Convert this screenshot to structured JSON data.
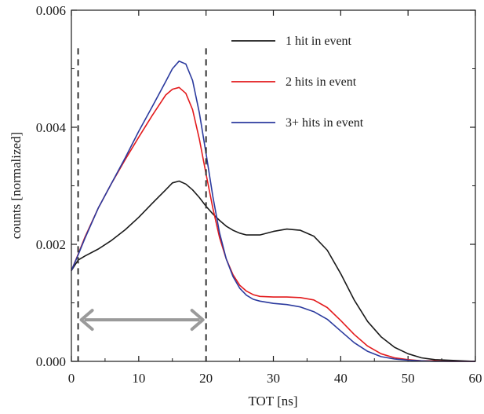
{
  "chart_data": {
    "type": "line",
    "xlabel": "TOT [ns]",
    "ylabel": "counts [normalized]",
    "xlim": [
      0,
      60
    ],
    "ylim": [
      0,
      0.006
    ],
    "x_ticks": [
      0,
      10,
      20,
      30,
      40,
      50,
      60
    ],
    "x_tick_labels": [
      "0",
      "10",
      "20",
      "30",
      "40",
      "50",
      "60"
    ],
    "y_ticks": [
      0,
      0.002,
      0.004,
      0.006
    ],
    "y_tick_labels": [
      "0.000",
      "0.002",
      "0.004",
      "0.006"
    ],
    "grid": false,
    "legend_position": "top-right",
    "series": [
      {
        "name": "1 hit in event",
        "color": "#1a1a1a",
        "x": [
          0,
          1,
          2,
          4,
          6,
          8,
          10,
          12,
          14,
          15,
          16,
          17,
          18,
          19,
          20,
          21,
          22,
          23,
          24,
          25,
          26,
          28,
          30,
          32,
          34,
          36,
          38,
          40,
          42,
          44,
          46,
          48,
          50,
          52,
          54,
          56,
          58,
          60
        ],
        "y": [
          0.00155,
          0.00173,
          0.0018,
          0.00192,
          0.00207,
          0.00225,
          0.00246,
          0.0027,
          0.00293,
          0.00305,
          0.00308,
          0.00303,
          0.00293,
          0.0028,
          0.00265,
          0.00252,
          0.00241,
          0.00231,
          0.00224,
          0.00219,
          0.00216,
          0.00216,
          0.00222,
          0.00226,
          0.00224,
          0.00214,
          0.0019,
          0.0015,
          0.00105,
          0.00068,
          0.00042,
          0.00024,
          0.00013,
          6e-05,
          3e-05,
          2e-05,
          1e-05,
          0.0
        ]
      },
      {
        "name": "2 hits in event",
        "color": "#e31a1c",
        "x": [
          0,
          1,
          2,
          4,
          6,
          8,
          10,
          12,
          14,
          15,
          16,
          17,
          18,
          19,
          20,
          21,
          22,
          23,
          24,
          25,
          26,
          27,
          28,
          30,
          32,
          34,
          36,
          38,
          40,
          42,
          44,
          46,
          48,
          50,
          52,
          54,
          56,
          58,
          60
        ],
        "y": [
          0.00155,
          0.00183,
          0.00212,
          0.00262,
          0.00305,
          0.00345,
          0.00383,
          0.0042,
          0.00455,
          0.00465,
          0.00468,
          0.00458,
          0.0043,
          0.0038,
          0.0032,
          0.00262,
          0.00212,
          0.00175,
          0.00148,
          0.0013,
          0.0012,
          0.00114,
          0.00111,
          0.0011,
          0.0011,
          0.00109,
          0.00105,
          0.00092,
          0.0007,
          0.00046,
          0.00026,
          0.00013,
          6e-05,
          3e-05,
          1e-05,
          1e-05,
          0.0,
          0.0,
          0.0
        ]
      },
      {
        "name": "3+ hits in event",
        "color": "#2b3a9e",
        "x": [
          0,
          1,
          2,
          4,
          6,
          8,
          10,
          12,
          14,
          15,
          16,
          17,
          18,
          19,
          20,
          21,
          22,
          23,
          24,
          25,
          26,
          27,
          28,
          30,
          32,
          34,
          36,
          38,
          40,
          42,
          44,
          46,
          48,
          50,
          52,
          54,
          56,
          58,
          60
        ],
        "y": [
          0.00155,
          0.00182,
          0.0021,
          0.00262,
          0.00305,
          0.00348,
          0.00393,
          0.00435,
          0.00478,
          0.005,
          0.00513,
          0.00508,
          0.0048,
          0.00425,
          0.00355,
          0.00282,
          0.0022,
          0.00175,
          0.00145,
          0.00125,
          0.00113,
          0.00106,
          0.00103,
          0.00099,
          0.00097,
          0.00093,
          0.00085,
          0.00072,
          0.00052,
          0.00032,
          0.00017,
          8e-05,
          4e-05,
          2e-05,
          1e-05,
          0.0,
          0.0,
          0.0,
          0.0
        ]
      }
    ],
    "annotations": {
      "dashed_lines_x": [
        1,
        20
      ],
      "arrow_x_range": [
        1,
        20
      ],
      "arrow_y": 0.00071,
      "arrow_color": "#9a9a9a",
      "dashed_color": "#333333"
    }
  }
}
